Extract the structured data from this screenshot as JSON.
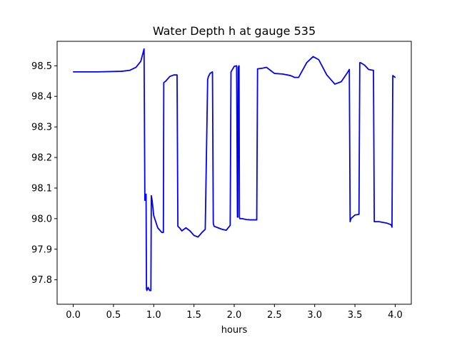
{
  "chart_data": {
    "type": "line",
    "title": "Water Depth h at gauge 535",
    "xlabel": "hours",
    "ylabel": "",
    "xlim": [
      -0.2,
      4.2
    ],
    "ylim": [
      97.72,
      98.58
    ],
    "xticks": [
      0.0,
      0.5,
      1.0,
      1.5,
      2.0,
      2.5,
      3.0,
      3.5,
      4.0
    ],
    "xtick_labels": [
      "0.0",
      "0.5",
      "1.0",
      "1.5",
      "2.0",
      "2.5",
      "3.0",
      "3.5",
      "4.0"
    ],
    "yticks": [
      97.8,
      97.9,
      98.0,
      98.1,
      98.2,
      98.3,
      98.4,
      98.5
    ],
    "ytick_labels": [
      "97.8",
      "97.9",
      "98.0",
      "98.1",
      "98.2",
      "98.3",
      "98.4",
      "98.5"
    ],
    "grid": false,
    "series": [
      {
        "name": "",
        "color": "#0000ff",
        "x": [
          0.0,
          0.3,
          0.6,
          0.7,
          0.78,
          0.84,
          0.88,
          0.89,
          0.895,
          0.905,
          0.91,
          0.915,
          0.93,
          0.95,
          0.965,
          0.97,
          0.98,
          1.0,
          1.05,
          1.1,
          1.12,
          1.125,
          1.15,
          1.2,
          1.25,
          1.29,
          1.3,
          1.32,
          1.35,
          1.4,
          1.45,
          1.5,
          1.55,
          1.6,
          1.64,
          1.67,
          1.68,
          1.7,
          1.73,
          1.74,
          1.75,
          1.8,
          1.85,
          1.9,
          1.95,
          1.96,
          2.0,
          2.03,
          2.04,
          2.045,
          2.05,
          2.06,
          2.065,
          2.07,
          2.1,
          2.15,
          2.2,
          2.25,
          2.28,
          2.29,
          2.35,
          2.4,
          2.45,
          2.5,
          2.6,
          2.7,
          2.75,
          2.8,
          2.9,
          2.98,
          3.05,
          3.15,
          3.25,
          3.33,
          3.4,
          3.43,
          3.44,
          3.45,
          3.5,
          3.55,
          3.56,
          3.57,
          3.62,
          3.67,
          3.73,
          3.74,
          3.75,
          3.8,
          3.9,
          3.95,
          3.96,
          3.97,
          4.0
        ],
        "y": [
          98.48,
          98.48,
          98.482,
          98.485,
          98.495,
          98.515,
          98.555,
          98.06,
          98.065,
          98.08,
          97.77,
          97.765,
          97.775,
          97.765,
          97.765,
          98.075,
          98.06,
          98.01,
          97.97,
          97.955,
          97.955,
          98.445,
          98.45,
          98.465,
          98.47,
          98.47,
          97.975,
          97.97,
          97.96,
          97.97,
          97.96,
          97.945,
          97.94,
          97.955,
          97.965,
          98.455,
          98.465,
          98.475,
          98.48,
          97.985,
          97.975,
          97.97,
          97.965,
          97.962,
          97.978,
          98.48,
          98.498,
          98.5,
          98.005,
          98.005,
          98.495,
          98.5,
          98.005,
          98.0,
          98.0,
          97.997,
          97.996,
          97.996,
          97.996,
          98.49,
          98.492,
          98.495,
          98.485,
          98.475,
          98.473,
          98.468,
          98.462,
          98.462,
          98.51,
          98.53,
          98.52,
          98.47,
          98.44,
          98.448,
          98.475,
          98.488,
          97.99,
          98.0,
          98.012,
          98.014,
          98.51,
          98.51,
          98.502,
          98.488,
          98.485,
          97.99,
          97.99,
          97.99,
          97.985,
          97.98,
          97.972,
          98.468,
          98.462
        ]
      }
    ]
  }
}
